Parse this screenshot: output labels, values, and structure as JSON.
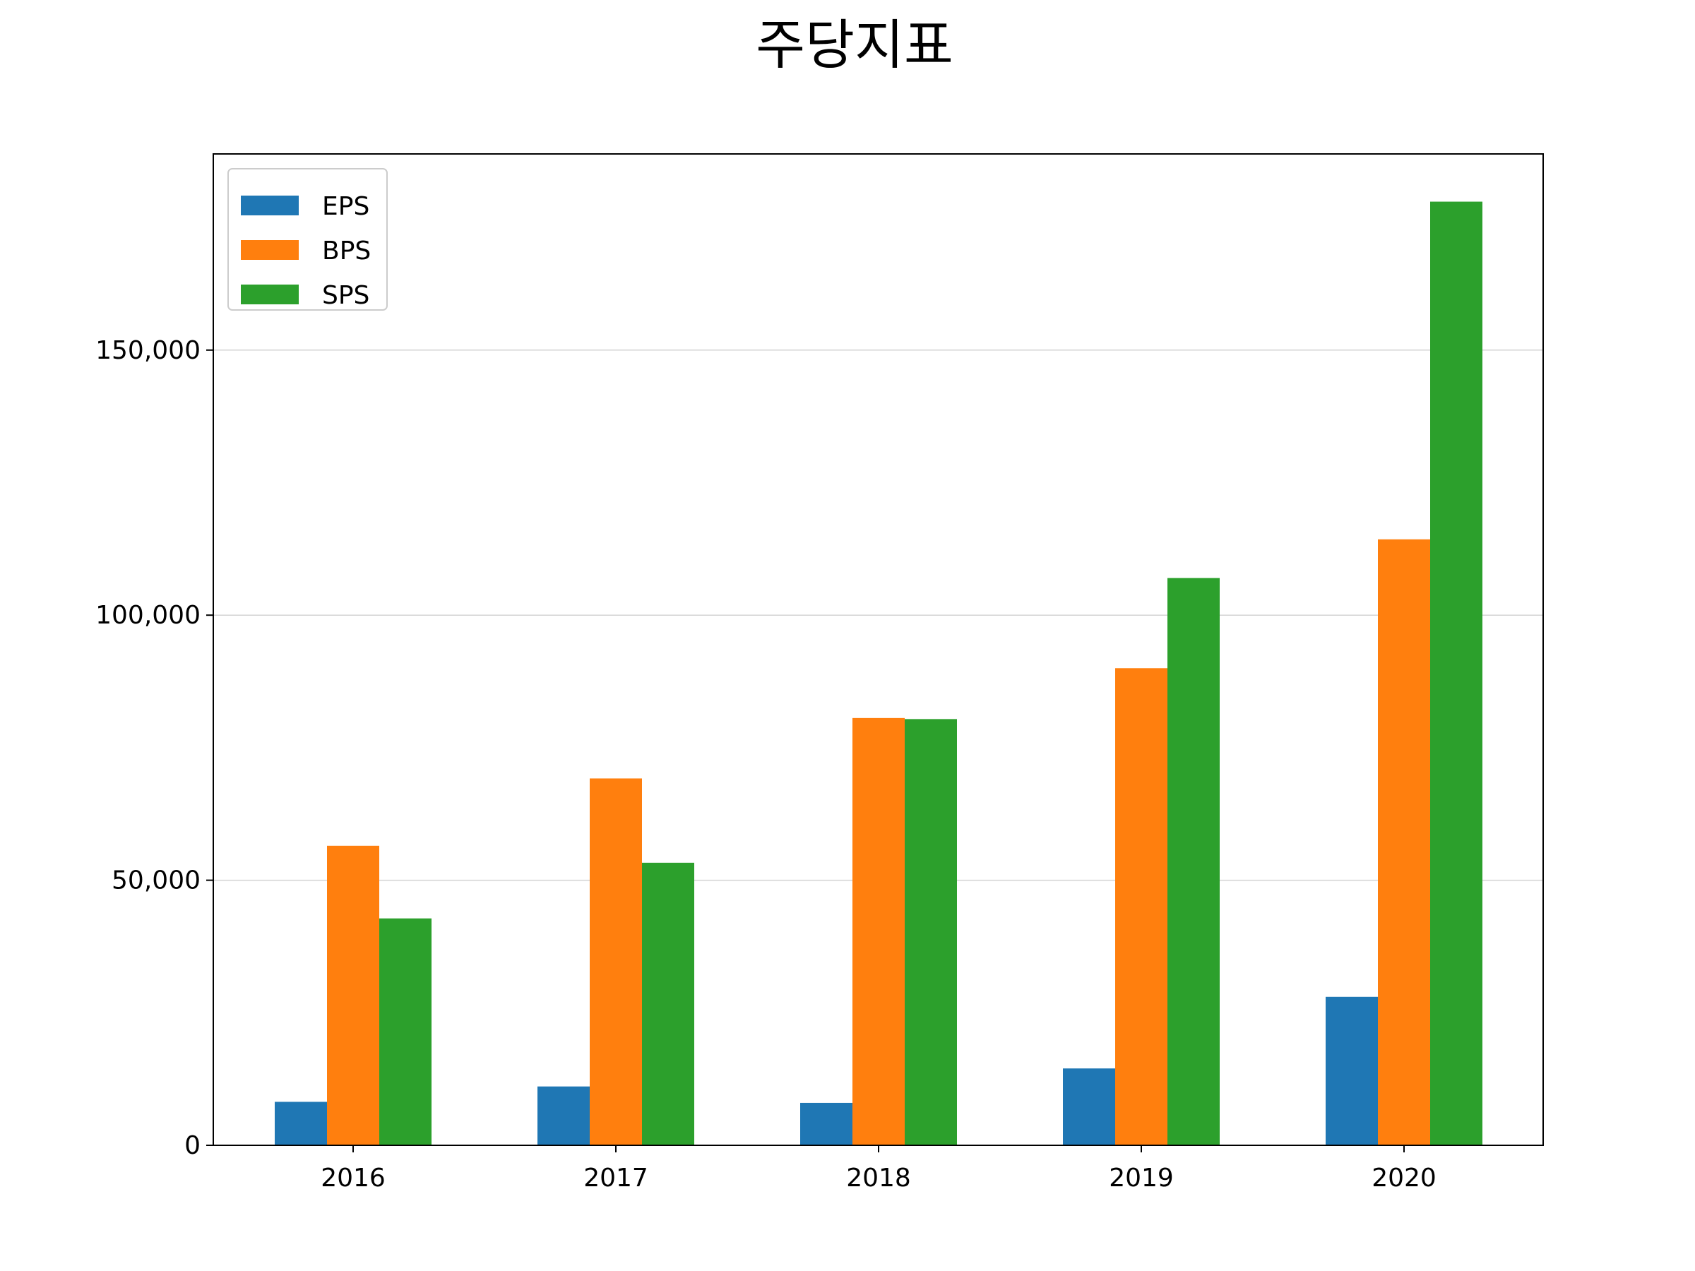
{
  "chart_data": {
    "type": "bar",
    "title": "주당지표",
    "xlabel": "",
    "ylabel": "",
    "categories": [
      "2016",
      "2017",
      "2018",
      "2019",
      "2020"
    ],
    "series": [
      {
        "name": "EPS",
        "color": "#1f77b4",
        "values": [
          8200,
          11100,
          8000,
          14500,
          28000
        ]
      },
      {
        "name": "BPS",
        "color": "#ff7f0e",
        "values": [
          56500,
          69200,
          80600,
          90000,
          114300
        ]
      },
      {
        "name": "SPS",
        "color": "#2ca02c",
        "values": [
          42800,
          53300,
          80400,
          107000,
          178000
        ]
      }
    ],
    "ylim": [
      0,
      187000
    ],
    "yticks": [
      0,
      50000,
      100000,
      150000
    ],
    "ytick_labels": [
      "0",
      "50,000",
      "100,000",
      "150,000"
    ],
    "grid": "y",
    "legend": "top-left"
  }
}
